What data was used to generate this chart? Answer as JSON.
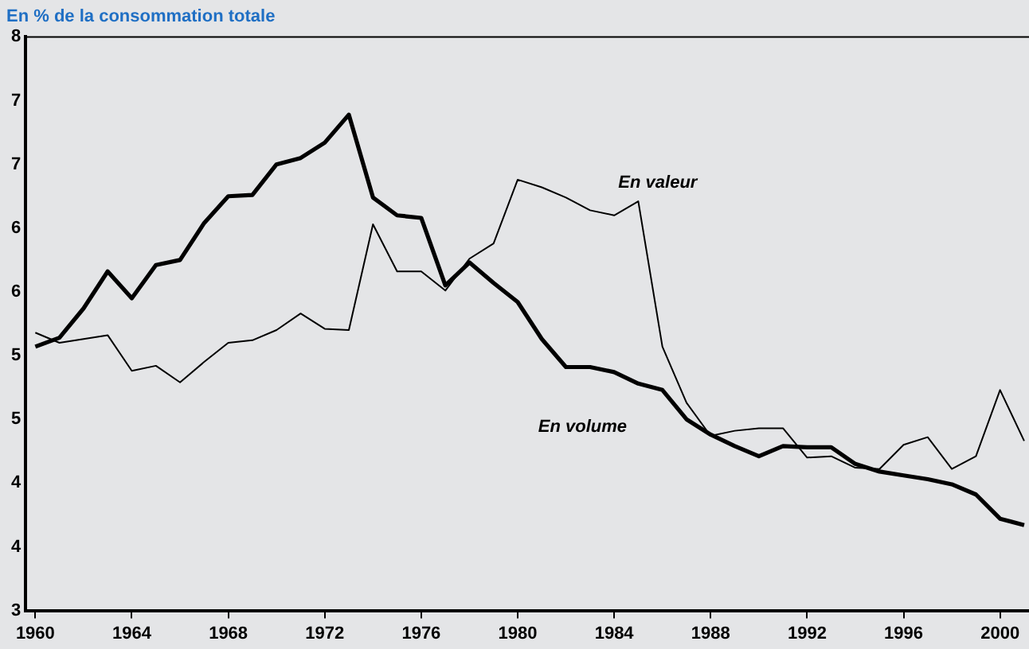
{
  "chart_data": {
    "type": "line",
    "title": "En % de la consommation totale",
    "x": [
      1960,
      1961,
      1962,
      1963,
      1964,
      1965,
      1966,
      1967,
      1968,
      1969,
      1970,
      1971,
      1972,
      1973,
      1974,
      1975,
      1976,
      1977,
      1978,
      1979,
      1980,
      1981,
      1982,
      1983,
      1984,
      1985,
      1986,
      1987,
      1988,
      1989,
      1990,
      1991,
      1992,
      1993,
      1994,
      1995,
      1996,
      1997,
      1998,
      1999,
      2000,
      2001
    ],
    "series": [
      {
        "name": "En valeur",
        "color": "#000000",
        "values": [
          5.68,
          5.6,
          5.63,
          5.66,
          5.38,
          5.42,
          5.29,
          5.45,
          5.6,
          5.62,
          5.7,
          5.83,
          5.71,
          5.7,
          6.53,
          6.16,
          6.16,
          6.01,
          6.26,
          6.38,
          6.88,
          6.82,
          6.74,
          6.64,
          6.6,
          6.71,
          5.57,
          5.13,
          4.87,
          4.91,
          4.93,
          4.93,
          4.7,
          4.71,
          4.62,
          4.61,
          4.8,
          4.86,
          4.61,
          4.71,
          5.23,
          4.83
        ]
      },
      {
        "name": "En volume",
        "color": "#000000",
        "values": [
          5.57,
          5.64,
          5.87,
          6.16,
          5.95,
          6.21,
          6.25,
          6.54,
          6.75,
          6.76,
          7.0,
          7.05,
          7.17,
          7.39,
          6.74,
          6.6,
          6.58,
          6.05,
          6.23,
          6.07,
          5.92,
          5.63,
          5.41,
          5.41,
          5.37,
          5.28,
          5.23,
          5.0,
          4.88,
          4.79,
          4.71,
          4.79,
          4.78,
          4.78,
          4.65,
          4.59,
          4.56,
          4.53,
          4.49,
          4.41,
          4.22,
          4.17
        ]
      }
    ],
    "xlim": [
      1959.6,
      2001.2
    ],
    "xticks": [
      1960,
      1964,
      1968,
      1972,
      1976,
      1980,
      1984,
      1988,
      1992,
      1996,
      2000
    ],
    "ylim": [
      3.5,
      8
    ],
    "yticks": [
      {
        "value": 3.5,
        "label": "3"
      },
      {
        "value": 4,
        "label": "4"
      },
      {
        "value": 4.5,
        "label": "4"
      },
      {
        "value": 5,
        "label": "5"
      },
      {
        "value": 5.5,
        "label": "5"
      },
      {
        "value": 6,
        "label": "6"
      },
      {
        "value": 6.5,
        "label": "6"
      },
      {
        "value": 7,
        "label": "7"
      },
      {
        "value": 7.5,
        "label": "7"
      },
      {
        "value": 8,
        "label": "8"
      }
    ],
    "grid": false,
    "legend": false,
    "marker": "none",
    "line_style": "solid"
  }
}
